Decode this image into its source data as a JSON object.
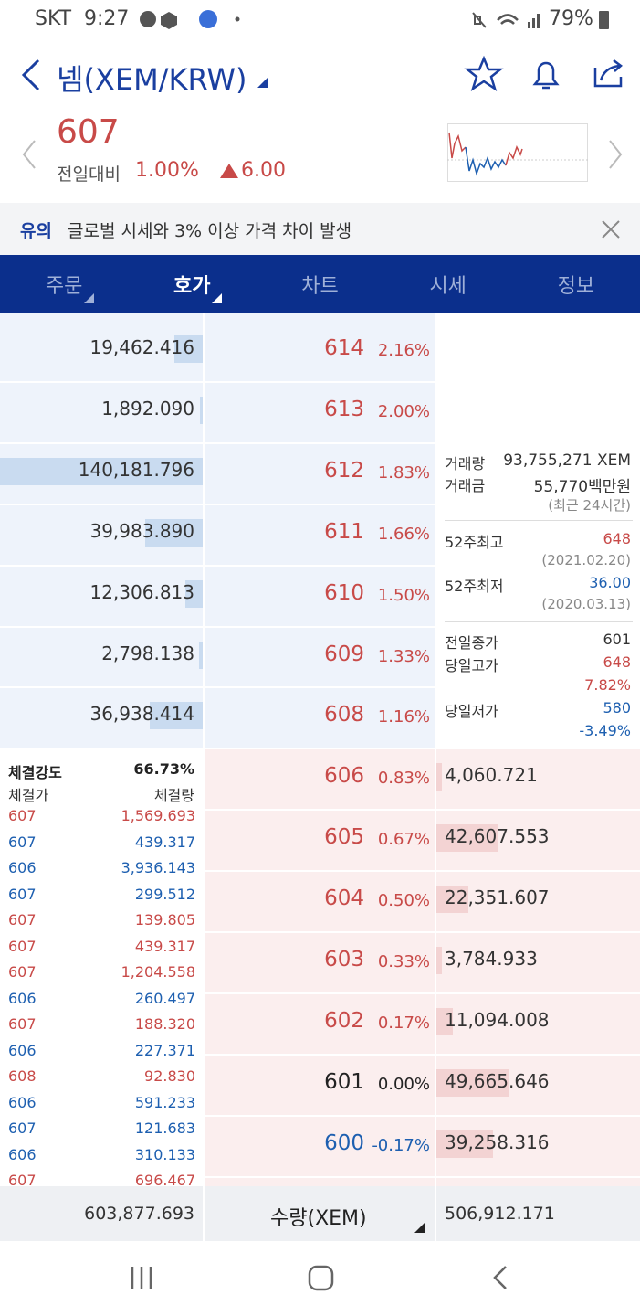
{
  "status": {
    "carrier": "SKT",
    "time": "9:27",
    "battery": "79%"
  },
  "header": {
    "title": "넴(XEM/KRW)"
  },
  "price": {
    "current": "607",
    "change_label": "전일대비",
    "change_pct": "1.00%",
    "change_amount": "6.00"
  },
  "notice": {
    "tag": "유의",
    "text": "글로벌 시세와 3% 이상 가격 차이 발생"
  },
  "tabs": {
    "items": [
      "주문",
      "호가",
      "차트",
      "시세",
      "정보"
    ],
    "active": 1
  },
  "asks": [
    {
      "quantity": "19,462.416",
      "price": "614",
      "percent": "2.16%",
      "color": "#c84a48"
    },
    {
      "quantity": "1,892.090",
      "price": "613",
      "percent": "2.00%",
      "color": "#c84a48"
    },
    {
      "quantity": "140,181.796",
      "price": "612",
      "percent": "1.83%",
      "color": "#c84a48"
    },
    {
      "quantity": "39,983.890",
      "price": "611",
      "percent": "1.66%",
      "color": "#c84a48"
    },
    {
      "quantity": "12,306.813",
      "price": "610",
      "percent": "1.50%",
      "color": "#c84a48"
    },
    {
      "quantity": "2,798.138",
      "price": "609",
      "percent": "1.33%",
      "color": "#c84a48"
    },
    {
      "quantity": "36,938.414",
      "price": "608",
      "percent": "1.16%",
      "color": "#c84a48"
    }
  ],
  "bids": [
    {
      "quantity": "4,060.721",
      "price": "606",
      "percent": "0.83%",
      "color": "#c84a48"
    },
    {
      "quantity": "42,607.553",
      "price": "605",
      "percent": "0.67%",
      "color": "#c84a48"
    },
    {
      "quantity": "22,351.607",
      "price": "604",
      "percent": "0.50%",
      "color": "#c84a48"
    },
    {
      "quantity": "3,784.933",
      "price": "603",
      "percent": "0.33%",
      "color": "#c84a48"
    },
    {
      "quantity": "11,094.008",
      "price": "602",
      "percent": "0.17%",
      "color": "#c84a48"
    },
    {
      "quantity": "49,665.646",
      "price": "601",
      "percent": "0.00%",
      "color": "#222222"
    },
    {
      "quantity": "39,258.316",
      "price": "600",
      "percent": "-0.17%",
      "color": "#1d5fb0"
    }
  ],
  "info": {
    "volume_label": "거래량",
    "volume": "93,755,271 XEM",
    "amount_label": "거래금",
    "amount": "55,770백만원",
    "period": "(최근 24시간)",
    "high52_label": "52주최고",
    "high52": "648",
    "high52_date": "(2021.02.20)",
    "low52_label": "52주최저",
    "low52": "36.00",
    "low52_date": "(2020.03.13)",
    "prev_close_label": "전일종가",
    "prev_close": "601",
    "day_high_label": "당일고가",
    "day_high": "648",
    "day_high_pct": "7.82%",
    "day_low_label": "당일저가",
    "day_low": "580",
    "day_low_pct": "-3.49%"
  },
  "trades": {
    "strength_label": "체결강도",
    "strength": "66.73%",
    "price_header": "체결가",
    "quantity_header": "체결량",
    "rows": [
      {
        "price": "607",
        "quantity": "1,569.693",
        "color": "#c84a48"
      },
      {
        "price": "607",
        "quantity": "439.317",
        "color": "#1d5fb0"
      },
      {
        "price": "606",
        "quantity": "3,936.143",
        "color": "#1d5fb0"
      },
      {
        "price": "607",
        "quantity": "299.512",
        "color": "#1d5fb0"
      },
      {
        "price": "607",
        "quantity": "139.805",
        "color": "#c84a48"
      },
      {
        "price": "607",
        "quantity": "439.317",
        "color": "#c84a48"
      },
      {
        "price": "607",
        "quantity": "1,204.558",
        "color": "#c84a48"
      },
      {
        "price": "606",
        "quantity": "260.497",
        "color": "#1d5fb0"
      },
      {
        "price": "607",
        "quantity": "188.320",
        "color": "#c84a48"
      },
      {
        "price": "606",
        "quantity": "227.371",
        "color": "#1d5fb0"
      },
      {
        "price": "608",
        "quantity": "92.830",
        "color": "#c84a48"
      },
      {
        "price": "606",
        "quantity": "591.233",
        "color": "#1d5fb0"
      },
      {
        "price": "607",
        "quantity": "121.683",
        "color": "#1d5fb0"
      },
      {
        "price": "606",
        "quantity": "310.133",
        "color": "#1d5fb0"
      },
      {
        "price": "607",
        "quantity": "696.467",
        "color": "#c84a48"
      }
    ]
  },
  "footer": {
    "ask_total": "603,877.693",
    "unit": "수량(XEM)",
    "bid_total": "506,912.171"
  }
}
